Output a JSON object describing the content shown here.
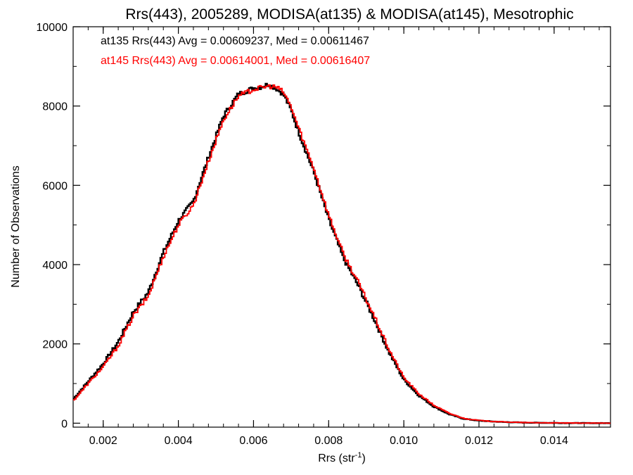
{
  "chart_data": {
    "type": "line",
    "title": "Rrs(443), 2005289, MODISA(at135) & MODISA(at145), Mesotrophic",
    "xlabel_main": "Rrs (str",
    "xlabel_sup": "-1",
    "xlabel_close": ")",
    "ylabel": "Number of Observations",
    "xlim": [
      0.0012,
      0.0155
    ],
    "ylim": [
      -100,
      10000
    ],
    "xticks": [
      {
        "v": 0.002,
        "label": "0.002"
      },
      {
        "v": 0.004,
        "label": "0.004"
      },
      {
        "v": 0.006,
        "label": "0.006"
      },
      {
        "v": 0.008,
        "label": "0.008"
      },
      {
        "v": 0.01,
        "label": "0.010"
      },
      {
        "v": 0.012,
        "label": "0.012"
      },
      {
        "v": 0.014,
        "label": "0.014"
      }
    ],
    "yticks": [
      {
        "v": 0,
        "label": "0"
      },
      {
        "v": 2000,
        "label": "2000"
      },
      {
        "v": 4000,
        "label": "4000"
      },
      {
        "v": 6000,
        "label": "6000"
      },
      {
        "v": 8000,
        "label": "8000"
      },
      {
        "v": 10000,
        "label": "10000"
      }
    ],
    "legend": [
      {
        "text": "at135 Rrs(443) Avg = 0.00609237, Med = 0.00611467",
        "color": "#000000"
      },
      {
        "text": "at145 Rrs(443) Avg = 0.00614001, Med = 0.00616407",
        "color": "#ff0000"
      }
    ],
    "series": [
      {
        "color": "#000000",
        "x": [
          0.0012,
          0.0016,
          0.002,
          0.0024,
          0.0028,
          0.0032,
          0.0036,
          0.004,
          0.0044,
          0.0048,
          0.0052,
          0.0056,
          0.006,
          0.0062,
          0.0064,
          0.0066,
          0.0068,
          0.007,
          0.0072,
          0.0076,
          0.008,
          0.0084,
          0.0088,
          0.0092,
          0.0096,
          0.01,
          0.0104,
          0.0108,
          0.0112,
          0.0116,
          0.012,
          0.0124,
          0.0128,
          0.0132,
          0.0136,
          0.014,
          0.0144,
          0.0148,
          0.0155
        ],
        "y": [
          600,
          1050,
          1500,
          2050,
          2800,
          3300,
          4300,
          5100,
          5600,
          6700,
          7750,
          8300,
          8450,
          8480,
          8550,
          8450,
          8300,
          7900,
          7350,
          6350,
          5150,
          4150,
          3450,
          2650,
          1800,
          1100,
          700,
          420,
          230,
          110,
          65,
          40,
          25,
          15,
          10,
          6,
          4,
          2,
          0
        ]
      },
      {
        "color": "#ff0000",
        "x": [
          0.0012,
          0.0016,
          0.002,
          0.0024,
          0.0028,
          0.0032,
          0.0036,
          0.004,
          0.0044,
          0.0048,
          0.0052,
          0.0056,
          0.006,
          0.0062,
          0.0064,
          0.0066,
          0.0068,
          0.007,
          0.0072,
          0.0076,
          0.008,
          0.0084,
          0.0088,
          0.0092,
          0.0096,
          0.01,
          0.0104,
          0.0108,
          0.0112,
          0.0116,
          0.012,
          0.0124,
          0.0128,
          0.0132,
          0.0136,
          0.014,
          0.0144,
          0.0148,
          0.0155
        ],
        "y": [
          560,
          1000,
          1420,
          1950,
          2700,
          3200,
          4200,
          5000,
          5500,
          6600,
          7650,
          8250,
          8420,
          8460,
          8500,
          8480,
          8350,
          7980,
          7450,
          6450,
          5250,
          4250,
          3530,
          2720,
          1870,
          1150,
          740,
          450,
          250,
          120,
          70,
          42,
          27,
          16,
          11,
          7,
          4,
          2,
          0
        ]
      }
    ]
  }
}
